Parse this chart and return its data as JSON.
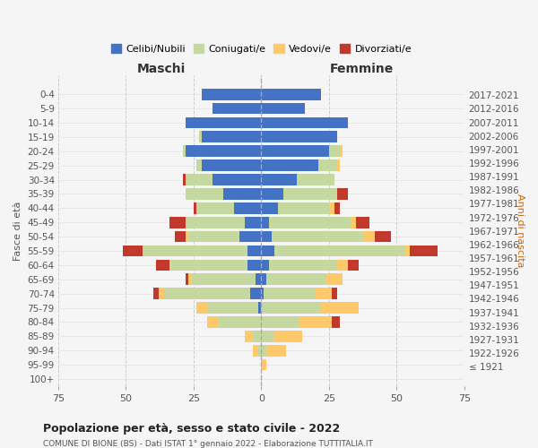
{
  "age_groups": [
    "100+",
    "95-99",
    "90-94",
    "85-89",
    "80-84",
    "75-79",
    "70-74",
    "65-69",
    "60-64",
    "55-59",
    "50-54",
    "45-49",
    "40-44",
    "35-39",
    "30-34",
    "25-29",
    "20-24",
    "15-19",
    "10-14",
    "5-9",
    "0-4"
  ],
  "birth_years": [
    "≤ 1921",
    "1922-1926",
    "1927-1931",
    "1932-1936",
    "1937-1941",
    "1942-1946",
    "1947-1951",
    "1952-1956",
    "1957-1961",
    "1962-1966",
    "1967-1971",
    "1972-1976",
    "1977-1981",
    "1982-1986",
    "1987-1991",
    "1992-1996",
    "1997-2001",
    "2002-2006",
    "2007-2011",
    "2012-2016",
    "2017-2021"
  ],
  "maschi": {
    "celibi": [
      0,
      0,
      0,
      0,
      0,
      1,
      4,
      2,
      5,
      5,
      8,
      6,
      10,
      14,
      18,
      22,
      28,
      22,
      28,
      18,
      22
    ],
    "coniugati": [
      0,
      0,
      1,
      3,
      16,
      19,
      32,
      24,
      29,
      39,
      19,
      22,
      14,
      14,
      10,
      2,
      1,
      1,
      0,
      0,
      0
    ],
    "vedovi": [
      0,
      0,
      2,
      3,
      4,
      4,
      2,
      1,
      0,
      0,
      1,
      0,
      0,
      0,
      0,
      0,
      0,
      0,
      0,
      0,
      0
    ],
    "divorziati": [
      0,
      0,
      0,
      0,
      0,
      0,
      2,
      1,
      5,
      7,
      4,
      6,
      1,
      0,
      1,
      0,
      0,
      0,
      0,
      0,
      0
    ]
  },
  "femmine": {
    "nubili": [
      0,
      0,
      0,
      0,
      0,
      0,
      1,
      2,
      3,
      5,
      4,
      3,
      6,
      8,
      13,
      21,
      25,
      28,
      32,
      16,
      22
    ],
    "coniugate": [
      0,
      0,
      2,
      5,
      14,
      22,
      19,
      22,
      25,
      48,
      34,
      30,
      19,
      20,
      14,
      7,
      4,
      0,
      0,
      0,
      0
    ],
    "vedove": [
      0,
      2,
      7,
      10,
      12,
      14,
      6,
      6,
      4,
      2,
      4,
      2,
      2,
      0,
      0,
      1,
      1,
      0,
      0,
      0,
      0
    ],
    "divorziate": [
      0,
      0,
      0,
      0,
      3,
      0,
      2,
      0,
      4,
      10,
      6,
      5,
      2,
      4,
      0,
      0,
      0,
      0,
      0,
      0,
      0
    ]
  },
  "colors": {
    "celibi": "#4472c4",
    "coniugati": "#c5d8a0",
    "vedovi": "#ffc96a",
    "divorziati": "#c0392b"
  },
  "xlim": 75,
  "title": "Popolazione per età, sesso e stato civile - 2022",
  "subtitle": "COMUNE DI BIONE (BS) - Dati ISTAT 1° gennaio 2022 - Elaborazione TUTTITALIA.IT",
  "ylabel_left": "Fasce di età",
  "ylabel_right": "Anni di nascita",
  "xlabel_left": "Maschi",
  "xlabel_right": "Femmine",
  "bg_color": "#f5f5f5",
  "legend_labels": [
    "Celibi/Nubili",
    "Coniugati/e",
    "Vedovi/e",
    "Divorziati/e"
  ]
}
